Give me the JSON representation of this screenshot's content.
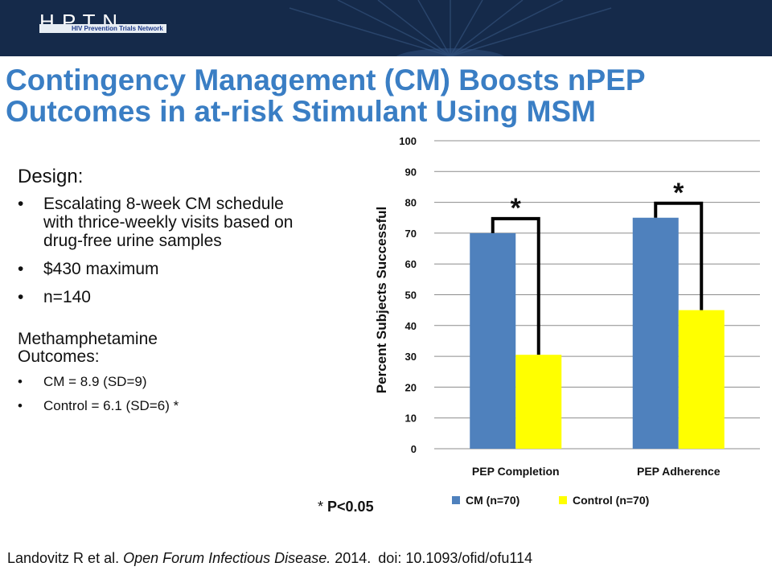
{
  "header": {
    "logo_letters": "H P T N",
    "logo_text": "HIV Prevention Trials Network"
  },
  "title_line1": "Contingency Management (CM) Boosts nPEP",
  "title_line2": "Outcomes in at-risk Stimulant Using MSM",
  "design": {
    "heading": "Design:",
    "bullets": [
      "Escalating 8-week CM schedule with thrice-weekly visits based on drug-free urine samples",
      "$430 maximum",
      "n=140"
    ]
  },
  "meth": {
    "heading": "Methamphetamine Outcomes:",
    "bullets": [
      "CM = 8.9 (SD=9)",
      "Control = 6.1 (SD=6) *"
    ]
  },
  "pnote": {
    "star": "*",
    "text": "P<0.05"
  },
  "citation": {
    "authors": "Landovitz R et al.",
    "journal": "Open Forum Infectious Disease.",
    "year": "2014.",
    "doi": "doi: 10.1093/ofid/ofu114"
  },
  "chart_data": {
    "type": "bar",
    "categories": [
      "PEP Completion",
      "PEP Adherence"
    ],
    "series": [
      {
        "name": "CM (n=70)",
        "values": [
          70,
          75
        ],
        "color": "#4f81bd"
      },
      {
        "name": "Control (n=70)",
        "values": [
          30.5,
          45
        ],
        "color": "#ffff00"
      }
    ],
    "ylabel": "Percent Subjects Successful",
    "ylim": [
      0,
      100
    ],
    "yticks": [
      0,
      10,
      20,
      30,
      40,
      50,
      60,
      70,
      80,
      90,
      100
    ],
    "grid": true,
    "legend": "bottom",
    "significance_marker": "*"
  }
}
